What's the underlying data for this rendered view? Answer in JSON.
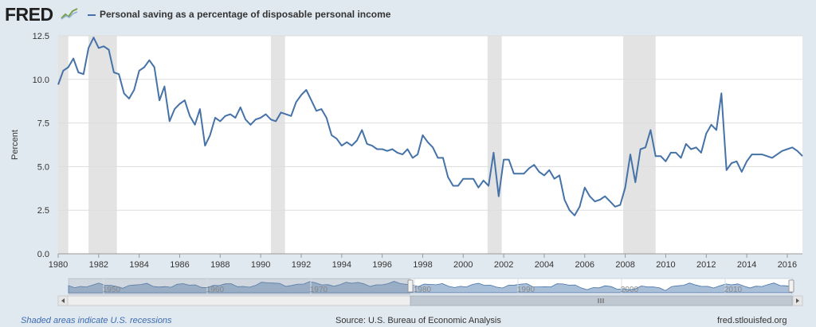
{
  "header": {
    "logo_text": "FRED",
    "logo_icon": "fred-chart-icon",
    "legend_label": "Personal saving as a percentage of disposable personal income",
    "series_color": "#4572a7"
  },
  "footer": {
    "recession_note": "Shaded areas indicate U.S. recessions",
    "source": "Source: U.S. Bureau of Economic Analysis",
    "site": "fred.stlouisfed.org"
  },
  "navigator": {
    "tick_labels": [
      "1950",
      "1960",
      "1970",
      "1980",
      "1990",
      "2000",
      "2010"
    ],
    "selected_range": [
      "1980",
      "2016"
    ],
    "scroll_left_icon": "arrow-left-icon",
    "scroll_right_icon": "arrow-right-icon",
    "scroll_grip_icon": "grip-icon"
  },
  "chart_data": {
    "type": "line",
    "title": "",
    "xlabel": "",
    "ylabel": "Percent",
    "xlim": [
      1980.0,
      2016.75
    ],
    "ylim": [
      0,
      12.5
    ],
    "grid": true,
    "legend": "top-left",
    "y_ticks": [
      "0.0",
      "2.5",
      "5.0",
      "7.5",
      "10.0",
      "12.5"
    ],
    "x_ticks": [
      "1980",
      "1982",
      "1984",
      "1986",
      "1988",
      "1990",
      "1992",
      "1994",
      "1996",
      "1998",
      "2000",
      "2002",
      "2004",
      "2006",
      "2008",
      "2010",
      "2012",
      "2014",
      "2016"
    ],
    "recessions": [
      [
        1980.0,
        1980.5
      ],
      [
        1981.5,
        1982.9
      ],
      [
        1990.5,
        1991.2
      ],
      [
        2001.2,
        2001.9
      ],
      [
        2007.9,
        2009.5
      ]
    ],
    "series": [
      {
        "name": "Personal saving as a percentage of disposable personal income",
        "color": "#4572a7",
        "points": [
          [
            1980.0,
            9.7
          ],
          [
            1980.25,
            10.5
          ],
          [
            1980.5,
            10.7
          ],
          [
            1980.75,
            11.2
          ],
          [
            1981.0,
            10.4
          ],
          [
            1981.25,
            10.3
          ],
          [
            1981.5,
            11.8
          ],
          [
            1981.75,
            12.4
          ],
          [
            1982.0,
            11.8
          ],
          [
            1982.25,
            11.9
          ],
          [
            1982.5,
            11.7
          ],
          [
            1982.75,
            10.4
          ],
          [
            1983.0,
            10.3
          ],
          [
            1983.25,
            9.2
          ],
          [
            1983.5,
            8.9
          ],
          [
            1983.75,
            9.4
          ],
          [
            1984.0,
            10.5
          ],
          [
            1984.25,
            10.7
          ],
          [
            1984.5,
            11.1
          ],
          [
            1984.75,
            10.7
          ],
          [
            1985.0,
            8.8
          ],
          [
            1985.25,
            9.6
          ],
          [
            1985.5,
            7.6
          ],
          [
            1985.75,
            8.3
          ],
          [
            1986.0,
            8.6
          ],
          [
            1986.25,
            8.8
          ],
          [
            1986.5,
            7.9
          ],
          [
            1986.75,
            7.4
          ],
          [
            1987.0,
            8.3
          ],
          [
            1987.25,
            6.2
          ],
          [
            1987.5,
            6.8
          ],
          [
            1987.75,
            7.8
          ],
          [
            1988.0,
            7.6
          ],
          [
            1988.25,
            7.9
          ],
          [
            1988.5,
            8.0
          ],
          [
            1988.75,
            7.8
          ],
          [
            1989.0,
            8.4
          ],
          [
            1989.25,
            7.7
          ],
          [
            1989.5,
            7.4
          ],
          [
            1989.75,
            7.7
          ],
          [
            1990.0,
            7.8
          ],
          [
            1990.25,
            8.0
          ],
          [
            1990.5,
            7.7
          ],
          [
            1990.75,
            7.6
          ],
          [
            1991.0,
            8.1
          ],
          [
            1991.25,
            8.0
          ],
          [
            1991.5,
            7.9
          ],
          [
            1991.75,
            8.7
          ],
          [
            1992.0,
            9.1
          ],
          [
            1992.25,
            9.4
          ],
          [
            1992.5,
            8.8
          ],
          [
            1992.75,
            8.2
          ],
          [
            1993.0,
            8.3
          ],
          [
            1993.25,
            7.8
          ],
          [
            1993.5,
            6.8
          ],
          [
            1993.75,
            6.6
          ],
          [
            1994.0,
            6.2
          ],
          [
            1994.25,
            6.4
          ],
          [
            1994.5,
            6.2
          ],
          [
            1994.75,
            6.5
          ],
          [
            1995.0,
            7.1
          ],
          [
            1995.25,
            6.3
          ],
          [
            1995.5,
            6.2
          ],
          [
            1995.75,
            6.0
          ],
          [
            1996.0,
            6.0
          ],
          [
            1996.25,
            5.9
          ],
          [
            1996.5,
            6.0
          ],
          [
            1996.75,
            5.8
          ],
          [
            1997.0,
            5.7
          ],
          [
            1997.25,
            6.0
          ],
          [
            1997.5,
            5.5
          ],
          [
            1997.75,
            5.7
          ],
          [
            1998.0,
            6.8
          ],
          [
            1998.25,
            6.4
          ],
          [
            1998.5,
            6.1
          ],
          [
            1998.75,
            5.5
          ],
          [
            1999.0,
            5.5
          ],
          [
            1999.25,
            4.4
          ],
          [
            1999.5,
            3.9
          ],
          [
            1999.75,
            3.9
          ],
          [
            2000.0,
            4.3
          ],
          [
            2000.25,
            4.3
          ],
          [
            2000.5,
            4.3
          ],
          [
            2000.75,
            3.8
          ],
          [
            2001.0,
            4.2
          ],
          [
            2001.25,
            3.9
          ],
          [
            2001.5,
            5.8
          ],
          [
            2001.75,
            3.3
          ],
          [
            2002.0,
            5.4
          ],
          [
            2002.25,
            5.4
          ],
          [
            2002.5,
            4.6
          ],
          [
            2002.75,
            4.6
          ],
          [
            2003.0,
            4.6
          ],
          [
            2003.25,
            4.9
          ],
          [
            2003.5,
            5.1
          ],
          [
            2003.75,
            4.7
          ],
          [
            2004.0,
            4.5
          ],
          [
            2004.25,
            4.8
          ],
          [
            2004.5,
            4.3
          ],
          [
            2004.75,
            4.5
          ],
          [
            2005.0,
            3.1
          ],
          [
            2005.25,
            2.5
          ],
          [
            2005.5,
            2.2
          ],
          [
            2005.75,
            2.7
          ],
          [
            2006.0,
            3.8
          ],
          [
            2006.25,
            3.3
          ],
          [
            2006.5,
            3.0
          ],
          [
            2006.75,
            3.1
          ],
          [
            2007.0,
            3.3
          ],
          [
            2007.25,
            3.0
          ],
          [
            2007.5,
            2.7
          ],
          [
            2007.75,
            2.8
          ],
          [
            2008.0,
            3.8
          ],
          [
            2008.25,
            5.7
          ],
          [
            2008.5,
            4.1
          ],
          [
            2008.75,
            6.0
          ],
          [
            2009.0,
            6.1
          ],
          [
            2009.25,
            7.1
          ],
          [
            2009.5,
            5.6
          ],
          [
            2009.75,
            5.6
          ],
          [
            2010.0,
            5.3
          ],
          [
            2010.25,
            5.8
          ],
          [
            2010.5,
            5.8
          ],
          [
            2010.75,
            5.5
          ],
          [
            2011.0,
            6.3
          ],
          [
            2011.25,
            6.0
          ],
          [
            2011.5,
            6.1
          ],
          [
            2011.75,
            5.8
          ],
          [
            2012.0,
            6.9
          ],
          [
            2012.25,
            7.4
          ],
          [
            2012.5,
            7.1
          ],
          [
            2012.75,
            9.2
          ],
          [
            2013.0,
            4.8
          ],
          [
            2013.25,
            5.2
          ],
          [
            2013.5,
            5.3
          ],
          [
            2013.75,
            4.7
          ],
          [
            2014.0,
            5.3
          ],
          [
            2014.25,
            5.7
          ],
          [
            2014.5,
            5.7
          ],
          [
            2014.75,
            5.7
          ],
          [
            2015.0,
            5.6
          ],
          [
            2015.25,
            5.5
          ],
          [
            2015.5,
            5.7
          ],
          [
            2015.75,
            5.9
          ],
          [
            2016.0,
            6.0
          ],
          [
            2016.25,
            6.1
          ],
          [
            2016.5,
            5.9
          ],
          [
            2016.75,
            5.6
          ]
        ]
      }
    ]
  }
}
